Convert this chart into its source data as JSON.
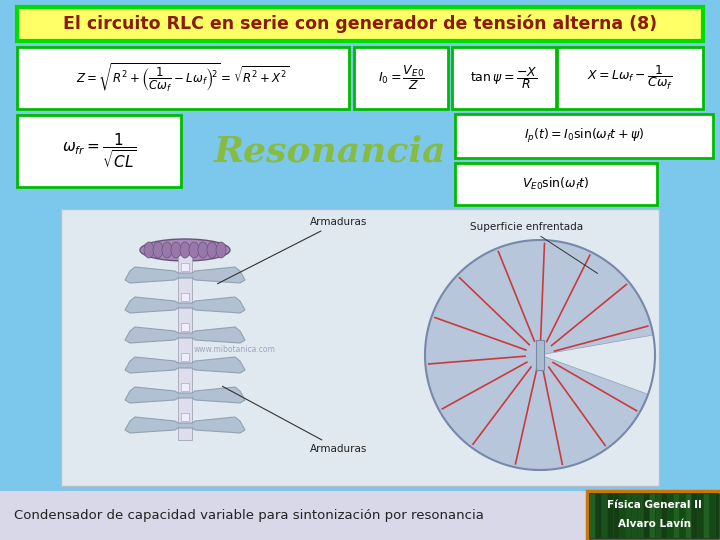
{
  "title": "El circuito RLC en serie con generador de tensión alterna (8)",
  "title_color": "#8B1A00",
  "title_bg": "#FFFF66",
  "title_border": "#00DD00",
  "bg_color": "#7BC8EC",
  "formula_box_bg": "#FFFFFF",
  "formula_box_border": "#00BB00",
  "resonancia_color": "#88BB44",
  "resonancia_text": "Resonancia",
  "caption": "Condensador de capacidad variable para sintonización por resonancia",
  "caption_bg": "#D8D8E8",
  "caption_color": "#222222",
  "badge_line1": "Física General II",
  "badge_line2": "Alvaro Lavín",
  "badge_border": "#CC7700",
  "img_bg": "#E0E8F0",
  "url_text": "www.mibotanica.com"
}
